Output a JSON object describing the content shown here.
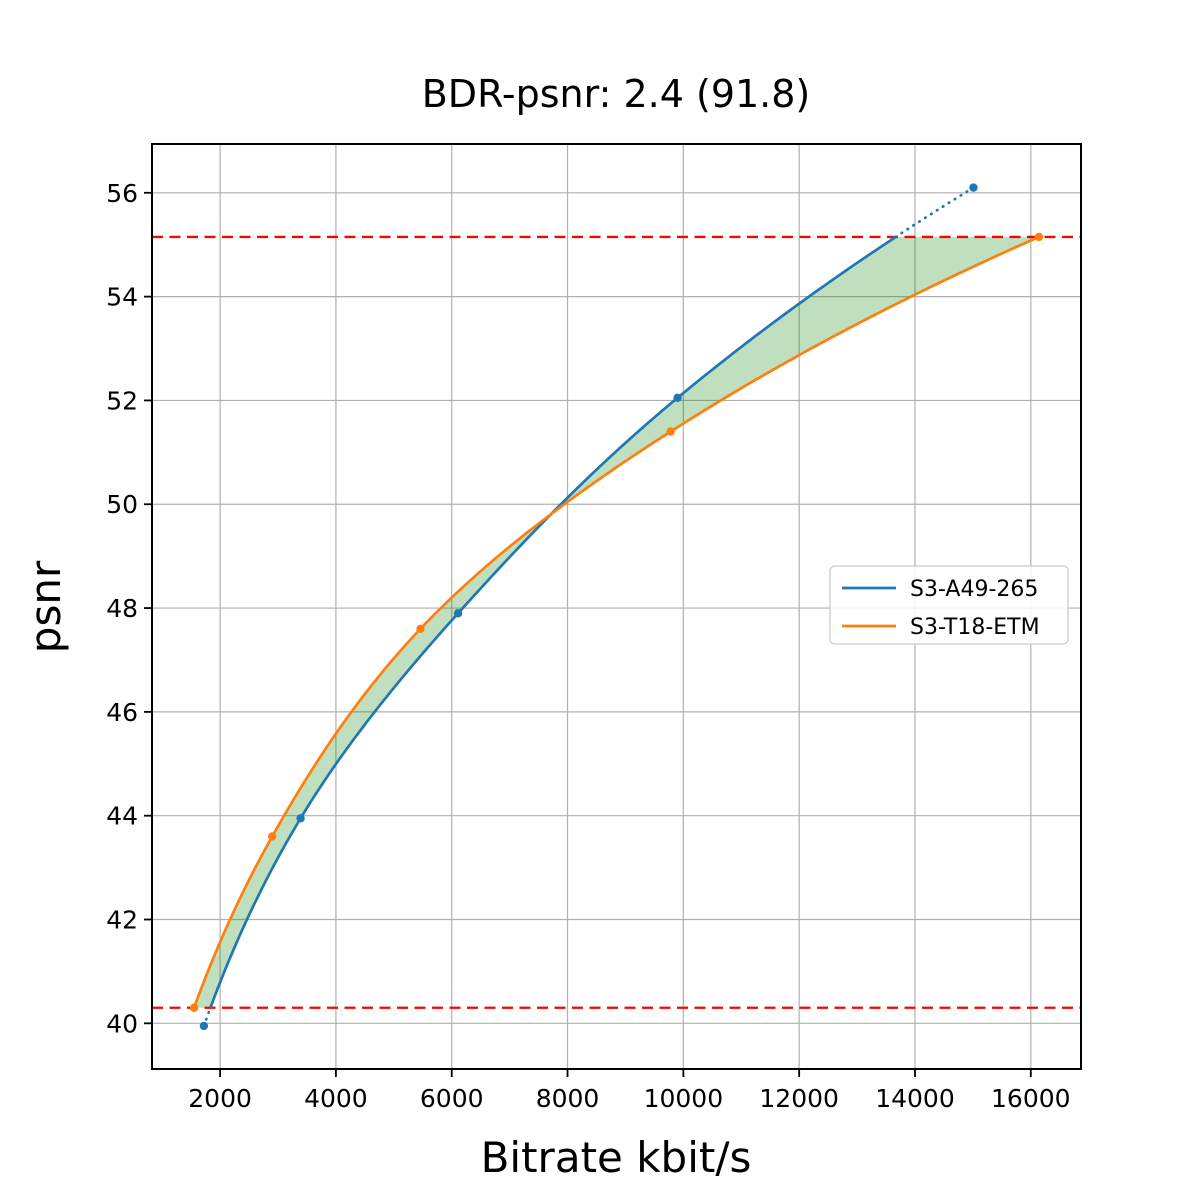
{
  "title": "BDR-psnr: 2.4 (91.8)",
  "chart_data": {
    "type": "line",
    "title": "BDR-psnr: 2.4 (91.8)",
    "xlabel": "Bitrate kbit/s",
    "ylabel": "psnr",
    "xlim": [
      824,
      16867
    ],
    "ylim": [
      39.12,
      56.94
    ],
    "x_ticks": [
      2000,
      4000,
      6000,
      8000,
      10000,
      12000,
      14000,
      16000
    ],
    "y_ticks": [
      40,
      42,
      44,
      46,
      48,
      50,
      52,
      54,
      56
    ],
    "grid": true,
    "grid_color": "#b0b0b0",
    "series": [
      {
        "name": "S3-A49-265",
        "color": "#1f77b4",
        "marker": "circle",
        "x": [
          1720,
          3390,
          6110,
          9900,
          15010
        ],
        "y": [
          39.95,
          43.95,
          47.9,
          52.05,
          56.1
        ],
        "line_style": "solid inside psnr overlap range, dotted outside"
      },
      {
        "name": "S3-T18-ETM",
        "color": "#ff7f0e",
        "marker": "circle",
        "x": [
          1550,
          2900,
          5460,
          9780,
          16140
        ],
        "y": [
          40.3,
          43.6,
          47.6,
          51.4,
          55.15
        ],
        "line_style": "solid"
      }
    ],
    "reference_lines": [
      {
        "y": 40.3,
        "color": "#ff0000",
        "style": "dashed"
      },
      {
        "y": 55.15,
        "color": "#ff0000",
        "style": "dashed"
      }
    ],
    "shaded_region": {
      "description": "area between the two rate-distortion curves within the overlapping psnr range",
      "psnr_range": [
        40.3,
        55.15
      ],
      "color": "#008000",
      "opacity": 0.25
    },
    "legend": {
      "labels": [
        "S3-A49-265",
        "S3-T18-ETM"
      ],
      "position": "center right"
    }
  }
}
